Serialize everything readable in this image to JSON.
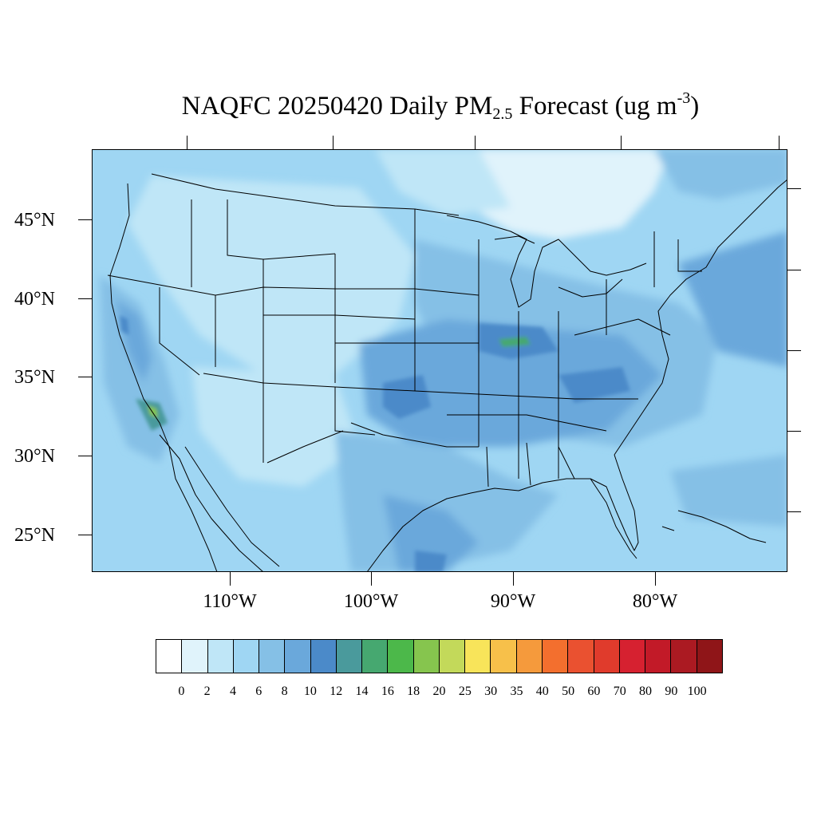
{
  "title": {
    "prefix": "NAQFC 20250420 Daily PM",
    "subscript": "2.5",
    "middle": " Forecast (ug m",
    "superscript": "-3",
    "suffix": ")"
  },
  "latitude_labels": [
    "45°N",
    "40°N",
    "35°N",
    "30°N",
    "25°N"
  ],
  "longitude_labels": [
    "110°W",
    "100°W",
    "90°W",
    "80°W"
  ],
  "colorbar": {
    "colors": [
      "#ffffff",
      "#e0f3fb",
      "#bfe6f7",
      "#9fd6f3",
      "#85c0e6",
      "#6aa8db",
      "#4b8ac9",
      "#4a9a9c",
      "#46a870",
      "#4cb84a",
      "#86c54e",
      "#c3d95a",
      "#f8e45a",
      "#f7c04a",
      "#f59a3c",
      "#f36f2e",
      "#ea5130",
      "#e03b2c",
      "#d62130",
      "#c21a28",
      "#ab1a22",
      "#8f1518"
    ],
    "labels": [
      "0",
      "2",
      "4",
      "6",
      "8",
      "10",
      "12",
      "14",
      "16",
      "18",
      "20",
      "25",
      "30",
      "35",
      "40",
      "50",
      "60",
      "70",
      "80",
      "90",
      "100"
    ]
  }
}
